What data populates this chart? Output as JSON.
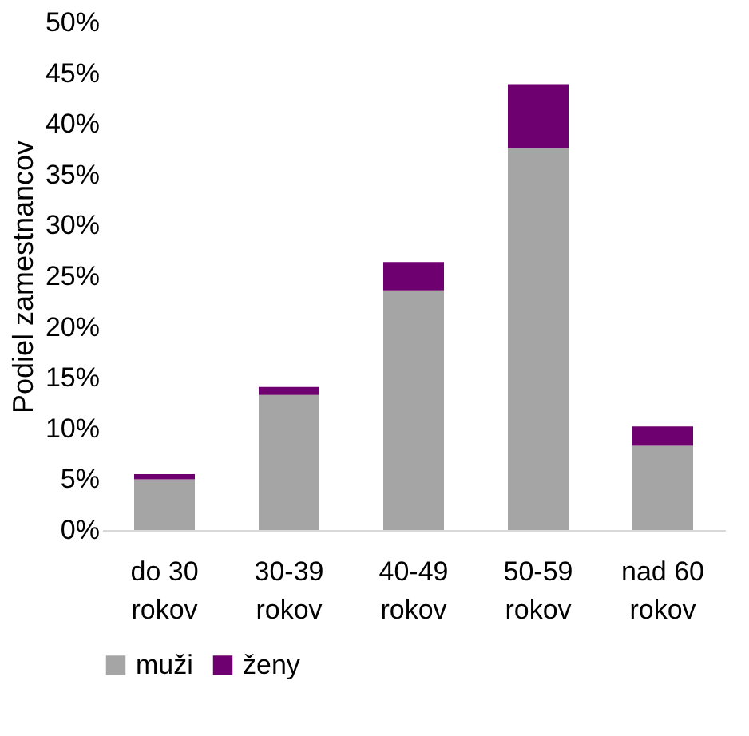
{
  "chart_data": {
    "type": "bar",
    "stacked": true,
    "ylabel": "Podiel zamestnancov",
    "categories": [
      "do 30 rokov",
      "30-39 rokov",
      "40-49 rokov",
      "50-59 rokov",
      "nad 60 rokov"
    ],
    "series": [
      {
        "name": "muži",
        "color": "#a5a5a5",
        "values": [
          5.0,
          13.3,
          23.6,
          37.6,
          8.3
        ]
      },
      {
        "name": "ženy",
        "color": "#6f006f",
        "values": [
          0.5,
          0.8,
          2.8,
          6.3,
          1.9
        ]
      }
    ],
    "ylim": [
      0,
      50
    ],
    "yticks": [
      {
        "value": 0,
        "label": "0%"
      },
      {
        "value": 5,
        "label": "5%"
      },
      {
        "value": 10,
        "label": "10%"
      },
      {
        "value": 15,
        "label": "15%"
      },
      {
        "value": 20,
        "label": "20%"
      },
      {
        "value": 25,
        "label": "25%"
      },
      {
        "value": 30,
        "label": "30%"
      },
      {
        "value": 35,
        "label": "35%"
      },
      {
        "value": 40,
        "label": "40%"
      },
      {
        "value": 45,
        "label": "45%"
      },
      {
        "value": 50,
        "label": "50%"
      }
    ],
    "grid": false,
    "legend": "bottom"
  }
}
